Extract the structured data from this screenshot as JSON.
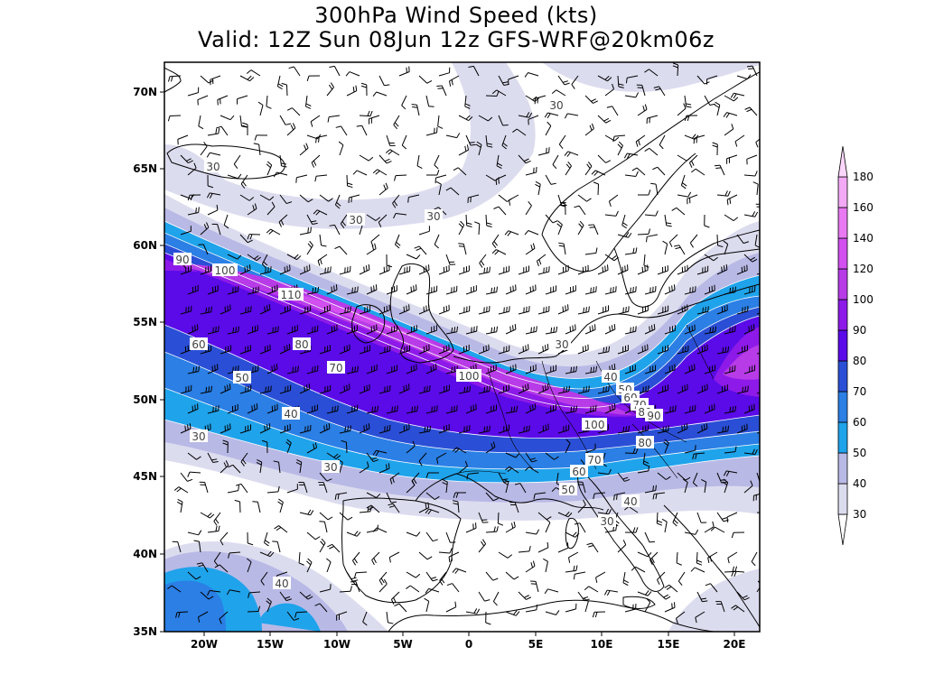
{
  "title_line1": "300hPa Wind Speed (kts)",
  "title_line2": "Valid: 12Z Sun 08Jun 12z GFS-WRF@20km06z",
  "lat_labels": [
    "70N",
    "65N",
    "60N",
    "55N",
    "50N",
    "45N",
    "40N",
    "35N"
  ],
  "lon_labels": [
    "20W",
    "15W",
    "10W",
    "5W",
    "0",
    "5E",
    "10E",
    "15E",
    "20E"
  ],
  "legend": {
    "levels": [
      "30",
      "40",
      "50",
      "60",
      "70",
      "80",
      "90",
      "100",
      "120",
      "140",
      "160",
      "180"
    ],
    "colors": [
      "#dcdcef",
      "#b9b9e6",
      "#1fa3eb",
      "#2b7fe5",
      "#2a4fd6",
      "#5a0be8",
      "#8d1ae8",
      "#b83be8",
      "#d24ff0",
      "#e879f2",
      "#f3a9f5",
      "#fbd6fb"
    ]
  },
  "contour_labels": [
    "30",
    "30",
    "30",
    "30",
    "30",
    "90",
    "100",
    "110",
    "60",
    "80",
    "70",
    "50",
    "40",
    "30",
    "30",
    "100",
    "40",
    "50",
    "60",
    "70",
    "80",
    "90",
    "100",
    "80",
    "70",
    "60",
    "50",
    "40",
    "30",
    "40"
  ],
  "colors": {
    "land_outline": "#000000",
    "background": "#ffffff"
  }
}
